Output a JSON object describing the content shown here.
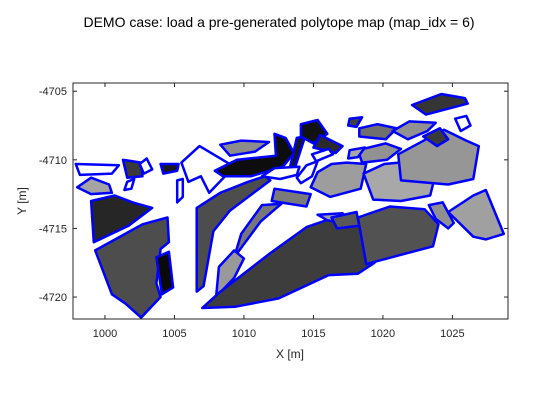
{
  "chart_data": {
    "type": "polygon-map",
    "title": "DEMO case: load a pre-generated polytope map (map_idx = 6)",
    "xlabel": "X [m]",
    "ylabel": "Y [m]",
    "xlim": [
      997.7,
      1029.0
    ],
    "ylim": [
      -4721.6,
      -4704.4
    ],
    "xticks": [
      1000,
      1005,
      1010,
      1015,
      1020,
      1025
    ],
    "xtick_labels": [
      "1000",
      "1005",
      "1010",
      "1015",
      "1020",
      "1025"
    ],
    "yticks": [
      -4705,
      -4710,
      -4715,
      -4720
    ],
    "ytick_labels": [
      "-4705",
      "-4710",
      "-4715",
      "-4720"
    ],
    "grid": false,
    "edge_color": "#0000ff",
    "polygons": [
      {
        "fill": "#ffffff",
        "points": [
          [
            997.9,
            -4710.3
          ],
          [
            1001.0,
            -4710.4
          ],
          [
            1000.5,
            -4711.0
          ],
          [
            998.2,
            -4711.1
          ]
        ]
      },
      {
        "fill": "#3a3a3a",
        "points": [
          [
            1001.3,
            -4710.0
          ],
          [
            1002.6,
            -4710.2
          ],
          [
            1002.7,
            -4711.2
          ],
          [
            1001.6,
            -4711.3
          ]
        ]
      },
      {
        "fill": "#a4a4a4",
        "points": [
          [
            998.0,
            -4712.0
          ],
          [
            999.0,
            -4711.3
          ],
          [
            1000.3,
            -4711.8
          ],
          [
            1000.5,
            -4712.4
          ],
          [
            999.0,
            -4712.5
          ]
        ]
      },
      {
        "fill": "#ffffff",
        "points": [
          [
            1001.6,
            -4711.6
          ],
          [
            1002.1,
            -4711.4
          ],
          [
            1001.9,
            -4712.1
          ],
          [
            1001.4,
            -4712.2
          ]
        ]
      },
      {
        "fill": "#ffffff",
        "points": [
          [
            1002.5,
            -4710.3
          ],
          [
            1003.0,
            -4709.9
          ],
          [
            1003.4,
            -4710.7
          ],
          [
            1002.8,
            -4711.0
          ]
        ]
      },
      {
        "fill": "#1a1a1a",
        "points": [
          [
            1004.0,
            -4710.3
          ],
          [
            1005.3,
            -4710.3
          ],
          [
            1005.2,
            -4710.8
          ],
          [
            1004.2,
            -4711.0
          ]
        ]
      },
      {
        "fill": "#ffffff",
        "points": [
          [
            1005.5,
            -4710.2
          ],
          [
            1006.8,
            -4709.0
          ],
          [
            1009.3,
            -4710.5
          ],
          [
            1007.5,
            -4712.4
          ],
          [
            1006.9,
            -4711.2
          ],
          [
            1006.0,
            -4711.6
          ]
        ]
      },
      {
        "fill": "#262626",
        "points": [
          [
            999.0,
            -4713.0
          ],
          [
            1000.7,
            -4712.6
          ],
          [
            1002.0,
            -4713.1
          ],
          [
            1003.4,
            -4713.5
          ],
          [
            1001.7,
            -4714.8
          ],
          [
            999.2,
            -4716.0
          ]
        ]
      },
      {
        "fill": "#4d4d4d",
        "points": [
          [
            999.3,
            -4716.6
          ],
          [
            1002.7,
            -4714.7
          ],
          [
            1004.5,
            -4714.2
          ],
          [
            1004.6,
            -4716.0
          ],
          [
            1004.0,
            -4716.5
          ],
          [
            1003.7,
            -4719.0
          ],
          [
            1004.0,
            -4720.0
          ],
          [
            1002.6,
            -4721.5
          ],
          [
            1001.5,
            -4720.5
          ],
          [
            1000.5,
            -4719.8
          ]
        ]
      },
      {
        "fill": "#0a0a0a",
        "points": [
          [
            1003.7,
            -4717.1
          ],
          [
            1004.6,
            -4716.7
          ],
          [
            1004.9,
            -4719.3
          ],
          [
            1004.1,
            -4719.8
          ]
        ]
      },
      {
        "fill": "#ffffff",
        "points": [
          [
            1005.2,
            -4711.5
          ],
          [
            1005.6,
            -4711.4
          ],
          [
            1005.6,
            -4712.7
          ],
          [
            1005.2,
            -4713.1
          ]
        ]
      },
      {
        "fill": "#4d4d4d",
        "points": [
          [
            1006.6,
            -4713.5
          ],
          [
            1008.3,
            -4712.4
          ],
          [
            1010.3,
            -4711.6
          ],
          [
            1011.5,
            -4711.2
          ],
          [
            1011.9,
            -4711.5
          ],
          [
            1009.0,
            -4713.7
          ],
          [
            1007.8,
            -4715.2
          ],
          [
            1007.1,
            -4719.2
          ],
          [
            1006.6,
            -4719.6
          ]
        ]
      },
      {
        "fill": "#777777",
        "points": [
          [
            1009.8,
            -4715.4
          ],
          [
            1011.3,
            -4713.3
          ],
          [
            1012.7,
            -4713.2
          ],
          [
            1011.2,
            -4714.5
          ],
          [
            1009.3,
            -4717.1
          ]
        ]
      },
      {
        "fill": "#999999",
        "points": [
          [
            1008.2,
            -4717.8
          ],
          [
            1009.3,
            -4716.6
          ],
          [
            1010.0,
            -4717.2
          ],
          [
            1009.3,
            -4718.6
          ],
          [
            1008.0,
            -4720.0
          ]
        ]
      },
      {
        "fill": "#8c8c8c",
        "points": [
          [
            1008.3,
            -4708.9
          ],
          [
            1009.8,
            -4708.6
          ],
          [
            1011.8,
            -4708.7
          ],
          [
            1010.8,
            -4709.4
          ],
          [
            1009.0,
            -4709.7
          ]
        ]
      },
      {
        "fill": "#0d0d0d",
        "points": [
          [
            1007.9,
            -4710.8
          ],
          [
            1009.5,
            -4710.0
          ],
          [
            1012.3,
            -4709.7
          ],
          [
            1012.2,
            -4708.1
          ],
          [
            1013.0,
            -4708.4
          ],
          [
            1013.6,
            -4709.5
          ],
          [
            1012.8,
            -4710.5
          ],
          [
            1010.5,
            -4711.2
          ],
          [
            1008.5,
            -4711.2
          ]
        ]
      },
      {
        "fill": "#191919",
        "points": [
          [
            1013.8,
            -4708.4
          ],
          [
            1014.4,
            -4708.3
          ],
          [
            1013.6,
            -4710.8
          ],
          [
            1013.3,
            -4710.6
          ]
        ]
      },
      {
        "fill": "#ffffff",
        "points": [
          [
            1011.3,
            -4711.2
          ],
          [
            1012.2,
            -4710.6
          ],
          [
            1014.0,
            -4710.5
          ],
          [
            1013.8,
            -4711.1
          ],
          [
            1012.6,
            -4711.4
          ]
        ]
      },
      {
        "fill": "#ffffff",
        "points": [
          [
            1013.8,
            -4711.3
          ],
          [
            1014.5,
            -4710.4
          ],
          [
            1015.3,
            -4710.1
          ],
          [
            1014.9,
            -4711.2
          ],
          [
            1014.1,
            -4711.7
          ]
        ]
      },
      {
        "fill": "#111111",
        "points": [
          [
            1014.1,
            -4707.4
          ],
          [
            1015.3,
            -4707.1
          ],
          [
            1016.0,
            -4708.1
          ],
          [
            1015.0,
            -4708.8
          ],
          [
            1014.1,
            -4708.3
          ]
        ]
      },
      {
        "fill": "#2a2a2a",
        "points": [
          [
            1015.5,
            -4708.2
          ],
          [
            1017.1,
            -4709.0
          ],
          [
            1016.6,
            -4709.5
          ],
          [
            1015.0,
            -4709.1
          ]
        ]
      },
      {
        "fill": "#ffffff",
        "points": [
          [
            1014.9,
            -4709.6
          ],
          [
            1016.1,
            -4709.2
          ],
          [
            1016.4,
            -4709.6
          ],
          [
            1015.2,
            -4710.1
          ]
        ]
      },
      {
        "fill": "#404040",
        "points": [
          [
            1017.6,
            -4707.0
          ],
          [
            1018.5,
            -4706.9
          ],
          [
            1018.1,
            -4707.6
          ],
          [
            1017.5,
            -4707.5
          ]
        ]
      },
      {
        "fill": "#6f6f6f",
        "points": [
          [
            1018.3,
            -4707.7
          ],
          [
            1019.6,
            -4707.4
          ],
          [
            1021.0,
            -4707.7
          ],
          [
            1020.2,
            -4708.5
          ],
          [
            1018.3,
            -4708.3
          ]
        ]
      },
      {
        "fill": "#929292",
        "points": [
          [
            1018.2,
            -4709.3
          ],
          [
            1020.2,
            -4708.8
          ],
          [
            1021.3,
            -4709.2
          ],
          [
            1020.3,
            -4710.0
          ],
          [
            1018.5,
            -4710.2
          ]
        ]
      },
      {
        "fill": "#9d9d9d",
        "points": [
          [
            1015.3,
            -4710.9
          ],
          [
            1016.3,
            -4710.3
          ],
          [
            1017.4,
            -4710.2
          ],
          [
            1018.8,
            -4710.3
          ],
          [
            1018.4,
            -4712.1
          ],
          [
            1016.2,
            -4712.7
          ],
          [
            1014.8,
            -4712.0
          ]
        ]
      },
      {
        "fill": "#7a7a7a",
        "points": [
          [
            1012.2,
            -4712.1
          ],
          [
            1014.8,
            -4712.5
          ],
          [
            1014.5,
            -4713.4
          ],
          [
            1012.0,
            -4713.0
          ]
        ]
      },
      {
        "fill": "#3d3d3d",
        "points": [
          [
            1008.2,
            -4719.7
          ],
          [
            1011.9,
            -4716.8
          ],
          [
            1014.5,
            -4714.9
          ],
          [
            1016.5,
            -4714.2
          ],
          [
            1018.1,
            -4714.6
          ],
          [
            1019.0,
            -4715.5
          ],
          [
            1019.4,
            -4717.5
          ],
          [
            1018.2,
            -4718.3
          ],
          [
            1016.1,
            -4718.4
          ],
          [
            1012.5,
            -4720.1
          ],
          [
            1009.4,
            -4720.7
          ],
          [
            1007.0,
            -4720.8
          ]
        ]
      },
      {
        "fill": "#a3a3a3",
        "points": [
          [
            1015.3,
            -4714.0
          ],
          [
            1017.1,
            -4713.9
          ],
          [
            1017.9,
            -4714.8
          ],
          [
            1016.0,
            -4714.4
          ]
        ]
      },
      {
        "fill": "#595959",
        "points": [
          [
            1016.3,
            -4714.2
          ],
          [
            1018.1,
            -4713.8
          ],
          [
            1018.3,
            -4714.8
          ],
          [
            1016.7,
            -4715.0
          ]
        ]
      },
      {
        "fill": "#525252",
        "points": [
          [
            1018.2,
            -4714.2
          ],
          [
            1020.5,
            -4713.4
          ],
          [
            1023.0,
            -4713.6
          ],
          [
            1024.0,
            -4714.7
          ],
          [
            1023.6,
            -4716.3
          ],
          [
            1021.0,
            -4717.0
          ],
          [
            1018.8,
            -4717.6
          ]
        ]
      },
      {
        "fill": "#a8a8a8",
        "points": [
          [
            1017.6,
            -4709.3
          ],
          [
            1018.7,
            -4709.1
          ],
          [
            1018.2,
            -4709.8
          ],
          [
            1017.5,
            -4709.9
          ]
        ]
      },
      {
        "fill": "#a8a8a8",
        "points": [
          [
            1018.6,
            -4711.0
          ],
          [
            1020.1,
            -4710.3
          ],
          [
            1022.2,
            -4710.1
          ],
          [
            1023.2,
            -4710.5
          ],
          [
            1023.7,
            -4711.4
          ],
          [
            1023.4,
            -4712.6
          ],
          [
            1021.3,
            -4713.0
          ],
          [
            1019.3,
            -4712.9
          ]
        ]
      },
      {
        "fill": "#969696",
        "points": [
          [
            1021.1,
            -4709.6
          ],
          [
            1024.4,
            -4707.8
          ],
          [
            1026.0,
            -4708.6
          ],
          [
            1026.9,
            -4709.0
          ],
          [
            1026.5,
            -4711.4
          ],
          [
            1024.7,
            -4711.8
          ],
          [
            1021.3,
            -4711.5
          ]
        ]
      },
      {
        "fill": "#919191",
        "points": [
          [
            1020.7,
            -4707.9
          ],
          [
            1021.9,
            -4707.2
          ],
          [
            1023.8,
            -4707.3
          ],
          [
            1023.2,
            -4707.9
          ],
          [
            1021.8,
            -4708.5
          ]
        ]
      },
      {
        "fill": "#3a3a3a",
        "points": [
          [
            1022.9,
            -4708.3
          ],
          [
            1024.1,
            -4707.7
          ],
          [
            1024.7,
            -4708.5
          ],
          [
            1023.9,
            -4709.0
          ]
        ]
      },
      {
        "fill": "#353535",
        "points": [
          [
            1022.1,
            -4706.0
          ],
          [
            1024.2,
            -4705.2
          ],
          [
            1025.9,
            -4705.5
          ],
          [
            1026.1,
            -4705.9
          ],
          [
            1023.1,
            -4706.7
          ]
        ]
      },
      {
        "fill": "#ffffff",
        "points": [
          [
            1025.2,
            -4707.0
          ],
          [
            1026.0,
            -4706.8
          ],
          [
            1026.3,
            -4707.5
          ],
          [
            1025.6,
            -4707.9
          ]
        ]
      },
      {
        "fill": "#a0a0a0",
        "points": [
          [
            1024.7,
            -4713.8
          ],
          [
            1026.5,
            -4712.6
          ],
          [
            1027.4,
            -4712.2
          ],
          [
            1028.7,
            -4715.4
          ],
          [
            1027.4,
            -4715.8
          ],
          [
            1026.5,
            -4715.6
          ]
        ]
      },
      {
        "fill": "#909090",
        "points": [
          [
            1023.3,
            -4713.3
          ],
          [
            1024.3,
            -4713.1
          ],
          [
            1025.1,
            -4714.6
          ],
          [
            1024.7,
            -4715.0
          ],
          [
            1023.8,
            -4714.3
          ]
        ]
      }
    ]
  }
}
